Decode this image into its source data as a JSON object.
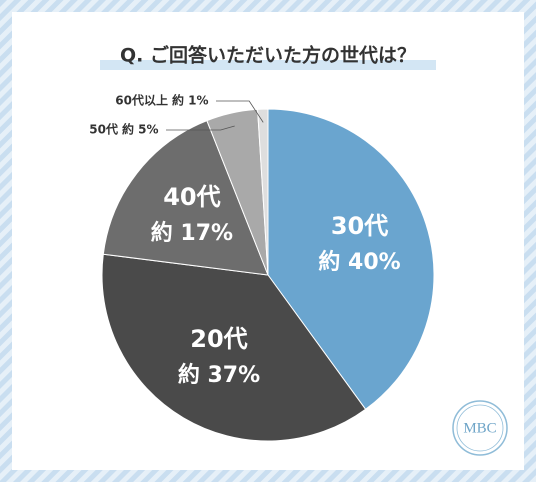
{
  "chart_data": {
    "type": "pie",
    "title": "Q. ご回答いただいた方の世代は？",
    "categories": [
      "30代",
      "20代",
      "40代",
      "50代",
      "60代以上"
    ],
    "values": [
      40,
      37,
      17,
      5,
      1
    ],
    "value_labels": [
      "約 40%",
      "約 37%",
      "約 17%",
      "約 5%",
      "約 1%"
    ],
    "colors": [
      "#6aa5cf",
      "#4a4a4a",
      "#6d6d6d",
      "#a9a9a9",
      "#dedede"
    ],
    "watermark": "MBC"
  }
}
